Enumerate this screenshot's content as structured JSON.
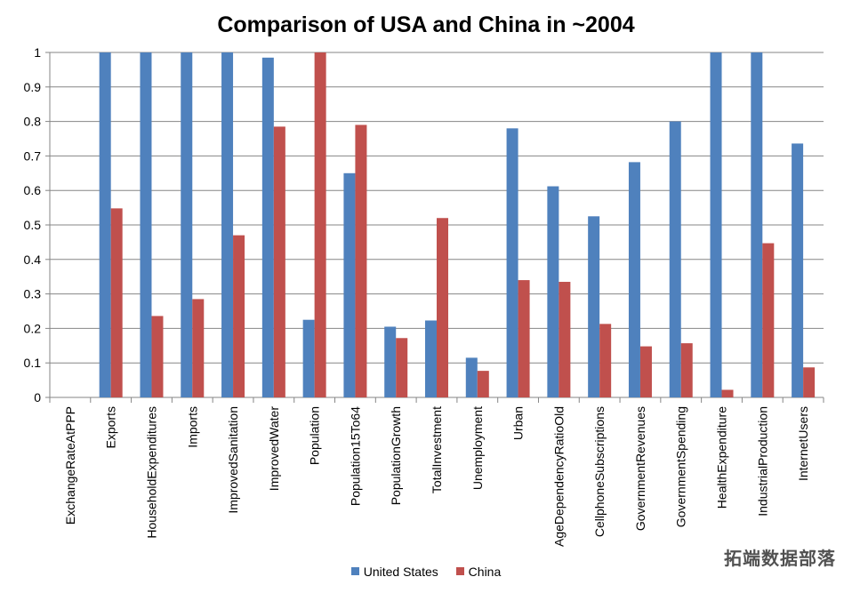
{
  "chart_data": {
    "type": "bar",
    "title": "Comparison of USA and China in ~2004",
    "xlabel": "",
    "ylabel": "",
    "ylim": [
      0,
      1
    ],
    "yticks": [
      "0",
      "0.1",
      "0.2",
      "0.3",
      "0.4",
      "0.5",
      "0.6",
      "0.7",
      "0.8",
      "0.9",
      "1"
    ],
    "grid": true,
    "legend_position": "bottom",
    "categories": [
      "ExchangeRateAtPPP",
      "Exports",
      "HouseholdExpenditures",
      "Imports",
      "ImprovedSanitation",
      "ImprovedWater",
      "Population",
      "Population15To64",
      "PopulationGrowth",
      "TotalInvestment",
      "Unemployment",
      "Urban",
      "AgeDependencyRatioOld",
      "CellphoneSubscriptions",
      "GovernmentRevenues",
      "GovernmentSpending",
      "HealthExpenditure",
      "IndustrialProduction",
      "InternetUsers"
    ],
    "series": [
      {
        "name": "United States",
        "color": "#4F81BD",
        "values": [
          0,
          1,
          1,
          1,
          1,
          0.985,
          0.225,
          0.65,
          0.205,
          0.223,
          0.115,
          0.78,
          0.612,
          0.525,
          0.682,
          0.8,
          1,
          1,
          0.736
        ]
      },
      {
        "name": "China",
        "color": "#C0504D",
        "values": [
          0,
          0.548,
          0.236,
          0.285,
          0.47,
          0.785,
          1,
          0.79,
          0.172,
          0.52,
          0.077,
          0.34,
          0.335,
          0.213,
          0.148,
          0.157,
          0.022,
          0.447,
          0.087
        ]
      }
    ]
  },
  "watermark": {
    "text": "拓端数据部落"
  },
  "colors": {
    "grid": "#868686",
    "axis": "#868686"
  }
}
